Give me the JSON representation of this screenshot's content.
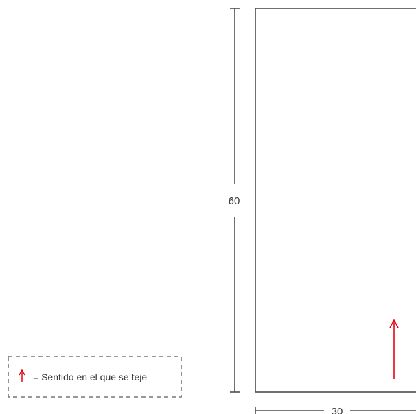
{
  "dimensions": {
    "height_label": "60",
    "width_label": "30"
  },
  "legend": {
    "text": "= Sentido en el que se teje",
    "symbol": "arrow-up-icon"
  },
  "colors": {
    "line": "#4d4d4d",
    "arrow": "#e30613",
    "legend_border": "#777777"
  }
}
